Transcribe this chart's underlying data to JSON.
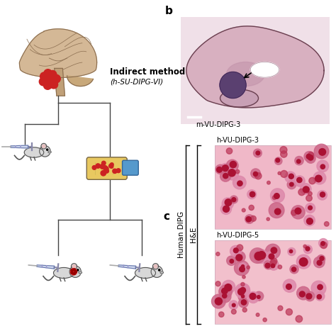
{
  "background_color": "#ffffff",
  "indirect_method_label": "Indirect method",
  "indirect_method_sublabel": "(h-SU-DIPG-VI)",
  "panel_b_label": "b",
  "panel_c_label": "c",
  "m_vu_dipg_label": "m-VU-DIPG-3",
  "h_vu_dipg_3_label": "h-VU-DIPG-3",
  "h_vu_dipg_5_label": "h-VU-DIPG-5",
  "human_dipg_label": "Human DIPG",
  "he_label": "H&E",
  "text_color": "#000000",
  "label_fontsize": 8.5,
  "sublabel_fontsize": 7.5,
  "panel_label_fontsize": 11,
  "small_label_fontsize": 7,
  "brain_skin": "#d4b896",
  "brain_outline": "#8b6e50",
  "tumor_red": "#cc2222",
  "syringe_blue": "#8899cc",
  "flask_yellow": "#e8c860",
  "flask_blue_cap": "#5599cc",
  "mouse_gray": "#d8d8d8",
  "mouse_outline": "#555555",
  "hist1_bg": "#f0b8c8",
  "hist2_bg": "#f0c0ca",
  "hist_cell_dark": "#aa1133",
  "hist_cell_mid": "#cc3355",
  "hist_cell_light": "#dd6688",
  "brain_sec_bg": "#e8d0d8",
  "brain_sec_tissue": "#c8a0b8",
  "brain_sec_dark": "#8855aa",
  "line_color": "#444444"
}
